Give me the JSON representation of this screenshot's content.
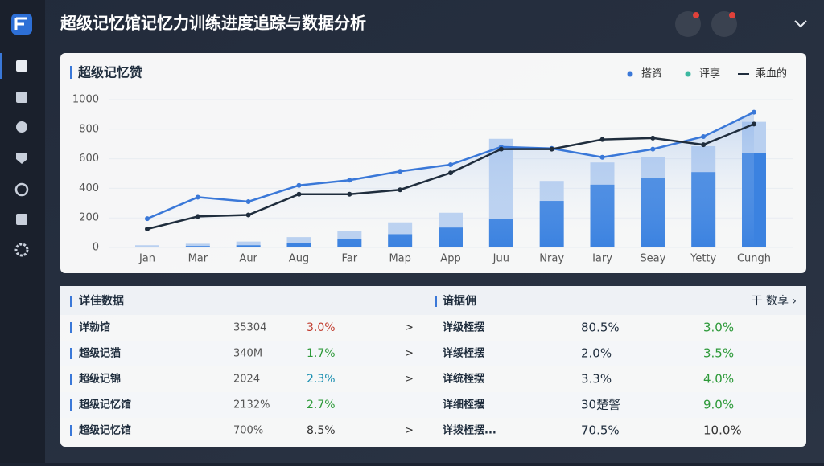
{
  "header": {
    "title": "超级记忆馆记忆力训练进度追踪与数据分析"
  },
  "chart_data": {
    "type": "combo",
    "title": "超级记忆赞",
    "categories": [
      "Jan",
      "Mar",
      "Aur",
      "Aug",
      "Far",
      "Map",
      "App",
      "Juu",
      "Nray",
      "Iary",
      "Seay",
      "Yetty",
      "Cungh"
    ],
    "series": [
      {
        "name": "搭资",
        "type": "line",
        "color": "#3a78d8",
        "marker_color": "#3a78d8",
        "values": [
          195,
          340,
          310,
          420,
          455,
          515,
          560,
          680,
          670,
          610,
          665,
          750,
          915
        ]
      },
      {
        "name": "乘血的",
        "type": "line",
        "color": "#1f2d3d",
        "marker_color": "#1f2d3d",
        "values": [
          125,
          210,
          220,
          360,
          360,
          390,
          505,
          665,
          665,
          730,
          740,
          695,
          835
        ]
      },
      {
        "name": "评享",
        "type": "bar",
        "color": "#3b82e0",
        "upper_color": "#b9d0f0",
        "marker_color": "#3cb8a0",
        "values": [
          5,
          10,
          15,
          30,
          55,
          90,
          135,
          195,
          315,
          425,
          470,
          510,
          640
        ],
        "upper_values": [
          10,
          15,
          25,
          40,
          55,
          80,
          100,
          540,
          135,
          150,
          140,
          175,
          210
        ]
      }
    ],
    "ylim": [
      0,
      1000
    ],
    "yticks": [
      0,
      200,
      400,
      600,
      800,
      1000
    ],
    "grid": true,
    "legend": "top-right"
  },
  "table": {
    "left_title": "详佳数据",
    "right_title": "谙据佣",
    "action": "干 数享 ›",
    "rows": [
      {
        "name": "详勍馆",
        "value": "35304",
        "change": "3.0%",
        "change_color": "#c0392b",
        "arrow": ">",
        "name2": "详级桎摆",
        "value2": "80.5%",
        "change2": "3.0%",
        "change2_color": "#2e9a3a"
      },
      {
        "name": "超级记猫",
        "value": "340M",
        "change": "1.7%",
        "change_color": "#2e9a3a",
        "arrow": ">",
        "name2": "详绥桎摆",
        "value2": "2.0%",
        "change2": "3.5%",
        "change2_color": "#2e9a3a"
      },
      {
        "name": "超级记锦",
        "value": "2024",
        "change": "2.3%",
        "change_color": "#1a8fb0",
        "arrow": ">",
        "name2": "详统桎摆",
        "value2": "3.3%",
        "change2": "4.0%",
        "change2_color": "#2e9a3a"
      },
      {
        "name": "超级记忆馆",
        "value": "2132%",
        "change": "2.7%",
        "change_color": "#2e9a3a",
        "name2": "详细桎摆",
        "value2": "30楚警",
        "change2": "9.0%",
        "change2_color": "#2e9a3a"
      },
      {
        "name": "超级记忆馆",
        "value": "700%",
        "change": "8.5%",
        "change_color": "#333333",
        "arrow": ">",
        "name2": "详拨桎摆...",
        "value2": "70.5%",
        "change2": "10.0%",
        "change2_color": "#333333"
      }
    ]
  }
}
